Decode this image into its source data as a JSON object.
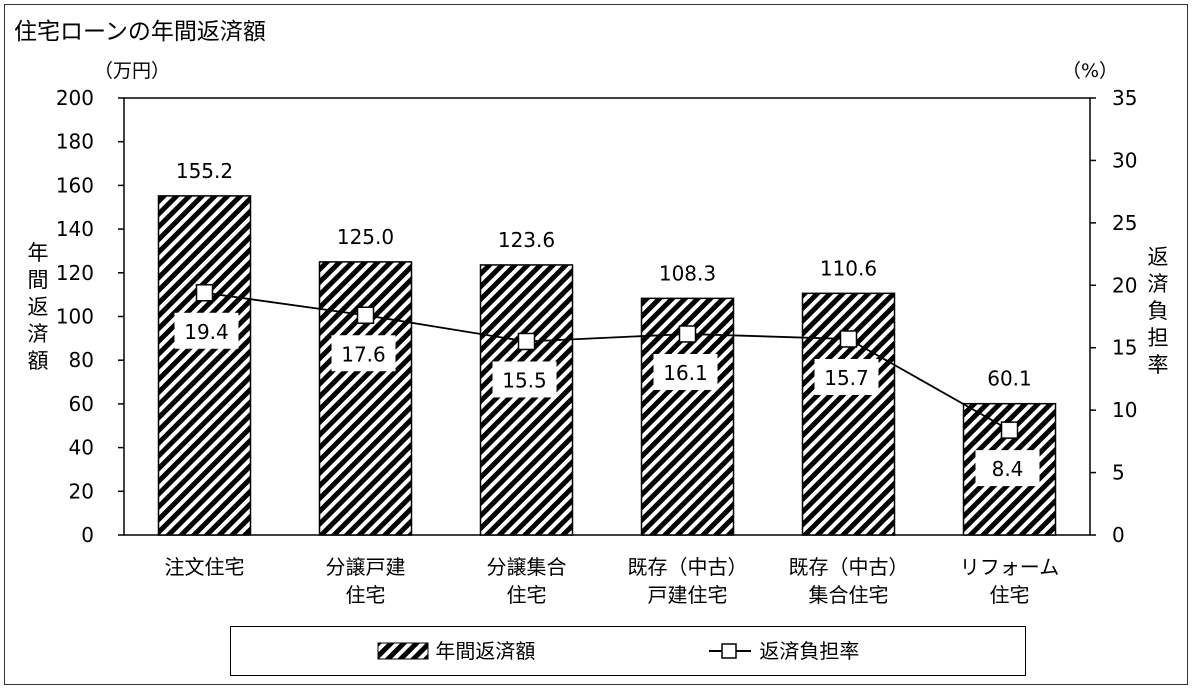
{
  "title": "住宅ローンの年間返済額",
  "left_unit": "（万円）",
  "right_unit": "（%）",
  "left_axis_label": [
    "年",
    "間",
    "返",
    "済",
    "額"
  ],
  "right_axis_label": [
    "返",
    "済",
    "負",
    "担",
    "率"
  ],
  "legend": {
    "bar_label": "年間返済額",
    "line_label": "返済負担率"
  },
  "chart_data": {
    "type": "bar",
    "categories": [
      [
        "注文住宅"
      ],
      [
        "分譲戸建",
        "住宅"
      ],
      [
        "分譲集合",
        "住宅"
      ],
      [
        "既存（中古）",
        "戸建住宅"
      ],
      [
        "既存（中古）",
        "集合住宅"
      ],
      [
        "リフォーム",
        "住宅"
      ]
    ],
    "series": [
      {
        "name": "年間返済額",
        "type": "bar",
        "axis": "left",
        "values": [
          155.2,
          125.0,
          123.6,
          108.3,
          110.6,
          60.1
        ],
        "labels": [
          "155.2",
          "125.0",
          "123.6",
          "108.3",
          "110.6",
          "60.1"
        ]
      },
      {
        "name": "返済負担率",
        "type": "line",
        "axis": "right",
        "values": [
          19.4,
          17.6,
          15.5,
          16.1,
          15.7,
          8.4
        ],
        "labels": [
          "19.4",
          "17.6",
          "15.5",
          "16.1",
          "15.7",
          "8.4"
        ]
      }
    ],
    "y_left": {
      "ylim": [
        0,
        200
      ],
      "ticks": [
        "0",
        "20",
        "40",
        "60",
        "80",
        "100",
        "120",
        "140",
        "160",
        "180",
        "200"
      ]
    },
    "y_right": {
      "ylim": [
        0,
        35
      ],
      "ticks": [
        "0",
        "5",
        "10",
        "15",
        "20",
        "25",
        "30",
        "35"
      ]
    },
    "grid": false,
    "legend_position": "bottom",
    "colors": {
      "bar_hatch": "#000000",
      "bar_fill": "#ffffff",
      "line": "#000000",
      "marker_fill": "#ffffff"
    }
  }
}
